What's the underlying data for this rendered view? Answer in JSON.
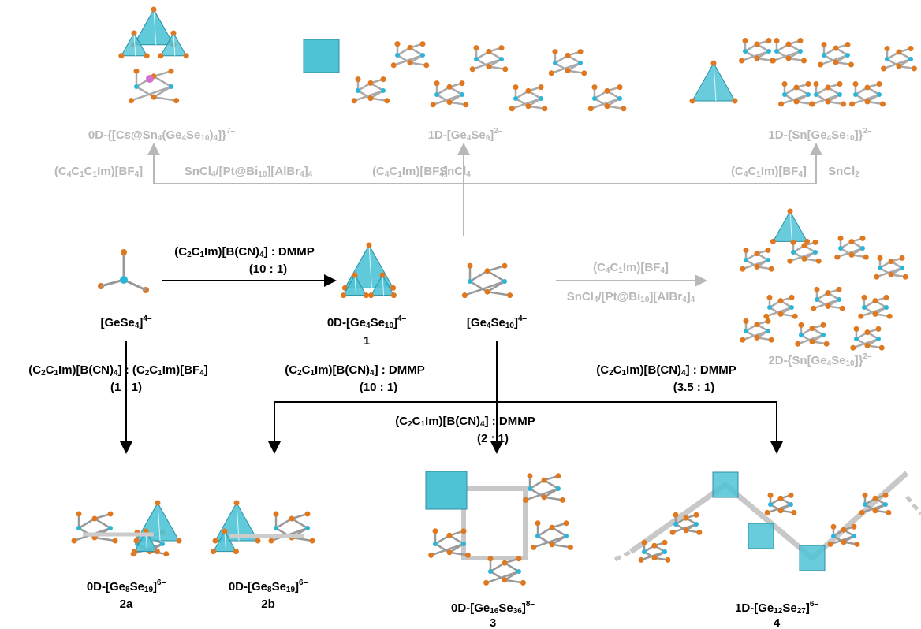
{
  "labels": [
    {
      "parts": [
        {
          "text": "0D-{[Cs@Sn"
        },
        {
          "sub": "4"
        },
        {
          "text": "(Ge"
        },
        {
          "sub": "4"
        },
        {
          "text": "Se"
        },
        {
          "sub": "10"
        },
        {
          "text": ")"
        },
        {
          "sub": "4"
        },
        {
          "text": "]}"
        },
        {
          "sup": "7–"
        }
      ]
    },
    {
      "parts": [
        {
          "text": "1D-[Ge"
        },
        {
          "sub": "4"
        },
        {
          "text": "Se"
        },
        {
          "sub": "9"
        },
        {
          "text": "]"
        },
        {
          "sup": "2–"
        }
      ]
    },
    {
      "parts": [
        {
          "text": "1D-{Sn[Ge"
        },
        {
          "sub": "4"
        },
        {
          "text": "Se"
        },
        {
          "sub": "10"
        },
        {
          "text": "]}"
        },
        {
          "sup": "2–"
        }
      ]
    },
    {
      "parts": [
        {
          "text": "(C"
        },
        {
          "sub": "4"
        },
        {
          "text": "C"
        },
        {
          "sub": "1"
        },
        {
          "text": "C"
        },
        {
          "sub": "1"
        },
        {
          "text": "Im)[BF"
        },
        {
          "sub": "4"
        },
        {
          "text": "]"
        }
      ]
    },
    {
      "parts": [
        {
          "text": "SnCl"
        },
        {
          "sub": "4"
        },
        {
          "text": "/[Pt@Bi"
        },
        {
          "sub": "10"
        },
        {
          "text": "][AlBr"
        },
        {
          "sub": "4"
        },
        {
          "text": "]"
        },
        {
          "sub": "4"
        }
      ]
    },
    {
      "parts": [
        {
          "text": "(C"
        },
        {
          "sub": "4"
        },
        {
          "text": "C"
        },
        {
          "sub": "1"
        },
        {
          "text": "Im)[BF"
        },
        {
          "sub": "4"
        },
        {
          "text": "]"
        }
      ]
    },
    {
      "parts": [
        {
          "text": "SnCl"
        },
        {
          "sub": "4"
        }
      ]
    },
    {
      "parts": [
        {
          "text": "(C"
        },
        {
          "sub": "4"
        },
        {
          "text": "C"
        },
        {
          "sub": "1"
        },
        {
          "text": "Im)[BF"
        },
        {
          "sub": "4"
        },
        {
          "text": "]"
        }
      ]
    },
    {
      "parts": [
        {
          "text": "SnCl"
        },
        {
          "sub": "2"
        }
      ]
    },
    {
      "parts": [
        {
          "text": "(C"
        },
        {
          "sub": "2"
        },
        {
          "text": "C"
        },
        {
          "sub": "1"
        },
        {
          "text": "Im)[B(CN)"
        },
        {
          "sub": "4"
        },
        {
          "text": "] : DMMP"
        }
      ]
    },
    {
      "parts": [
        {
          "text": "(10 : 1)"
        }
      ]
    },
    {
      "parts": [
        {
          "text": "[GeSe"
        },
        {
          "sub": "4"
        },
        {
          "text": "]"
        },
        {
          "sup": "4–"
        }
      ]
    },
    {
      "parts": [
        {
          "text": "0D-[Ge"
        },
        {
          "sub": "4"
        },
        {
          "text": "Se"
        },
        {
          "sub": "10"
        },
        {
          "text": "]"
        },
        {
          "sup": "4–"
        }
      ]
    },
    {
      "parts": [
        {
          "text": "1"
        }
      ]
    },
    {
      "parts": [
        {
          "text": "[Ge"
        },
        {
          "sub": "4"
        },
        {
          "text": "Se"
        },
        {
          "sub": "10"
        },
        {
          "text": "]"
        },
        {
          "sup": "4–"
        }
      ]
    },
    {
      "parts": [
        {
          "text": "(C"
        },
        {
          "sub": "4"
        },
        {
          "text": "C"
        },
        {
          "sub": "1"
        },
        {
          "text": "Im)[BF"
        },
        {
          "sub": "4"
        },
        {
          "text": "]"
        }
      ]
    },
    {
      "parts": [
        {
          "text": "SnCl"
        },
        {
          "sub": "4"
        },
        {
          "text": "/[Pt@Bi"
        },
        {
          "sub": "10"
        },
        {
          "text": "][AlBr"
        },
        {
          "sub": "4"
        },
        {
          "text": "]"
        },
        {
          "sub": "4"
        }
      ]
    },
    {
      "parts": [
        {
          "text": "2D-{Sn[Ge"
        },
        {
          "sub": "4"
        },
        {
          "text": "Se"
        },
        {
          "sub": "10"
        },
        {
          "text": "]}"
        },
        {
          "sup": "2–"
        }
      ]
    },
    {
      "parts": [
        {
          "text": "(C"
        },
        {
          "sub": "2"
        },
        {
          "text": "C"
        },
        {
          "sub": "1"
        },
        {
          "text": "Im)[B(CN)"
        },
        {
          "sub": "4"
        },
        {
          "text": "] : (C"
        },
        {
          "sub": "2"
        },
        {
          "text": "C"
        },
        {
          "sub": "1"
        },
        {
          "text": "Im)[BF"
        },
        {
          "sub": "4"
        },
        {
          "text": "]"
        }
      ]
    },
    {
      "parts": [
        {
          "text": "(1 : 1)"
        }
      ]
    },
    {
      "parts": [
        {
          "text": "(C"
        },
        {
          "sub": "2"
        },
        {
          "text": "C"
        },
        {
          "sub": "1"
        },
        {
          "text": "Im)[B(CN)"
        },
        {
          "sub": "4"
        },
        {
          "text": "] : DMMP"
        }
      ]
    },
    {
      "parts": [
        {
          "text": "(10 : 1)"
        }
      ]
    },
    {
      "parts": [
        {
          "text": "(C"
        },
        {
          "sub": "2"
        },
        {
          "text": "C"
        },
        {
          "sub": "1"
        },
        {
          "text": "Im)[B(CN)"
        },
        {
          "sub": "4"
        },
        {
          "text": "] : DMMP"
        }
      ]
    },
    {
      "parts": [
        {
          "text": "(3.5 : 1)"
        }
      ]
    },
    {
      "parts": [
        {
          "text": "(C"
        },
        {
          "sub": "2"
        },
        {
          "text": "C"
        },
        {
          "sub": "1"
        },
        {
          "text": "Im)[B(CN)"
        },
        {
          "sub": "4"
        },
        {
          "text": "] : DMMP"
        }
      ]
    },
    {
      "parts": [
        {
          "text": "(2 : 1)"
        }
      ]
    },
    {
      "parts": [
        {
          "text": "0D-[Ge"
        },
        {
          "sub": "8"
        },
        {
          "text": "Se"
        },
        {
          "sub": "19"
        },
        {
          "text": "]"
        },
        {
          "sup": "6–"
        }
      ]
    },
    {
      "parts": [
        {
          "text": "2a"
        }
      ]
    },
    {
      "parts": [
        {
          "text": "0D-[Ge"
        },
        {
          "sub": "8"
        },
        {
          "text": "Se"
        },
        {
          "sub": "19"
        },
        {
          "text": "]"
        },
        {
          "sup": "6–"
        }
      ]
    },
    {
      "parts": [
        {
          "text": "2b"
        }
      ]
    },
    {
      "parts": [
        {
          "text": "0D-[Ge"
        },
        {
          "sub": "16"
        },
        {
          "text": "Se"
        },
        {
          "sub": "36"
        },
        {
          "text": "]"
        },
        {
          "sup": "8–"
        }
      ]
    },
    {
      "parts": [
        {
          "text": "3"
        }
      ]
    },
    {
      "parts": [
        {
          "text": "1D-[Ge"
        },
        {
          "sub": "12"
        },
        {
          "text": "Se"
        },
        {
          "sub": "27"
        },
        {
          "text": "]"
        },
        {
          "sup": "6–"
        }
      ]
    },
    {
      "parts": [
        {
          "text": "4"
        }
      ]
    }
  ]
}
